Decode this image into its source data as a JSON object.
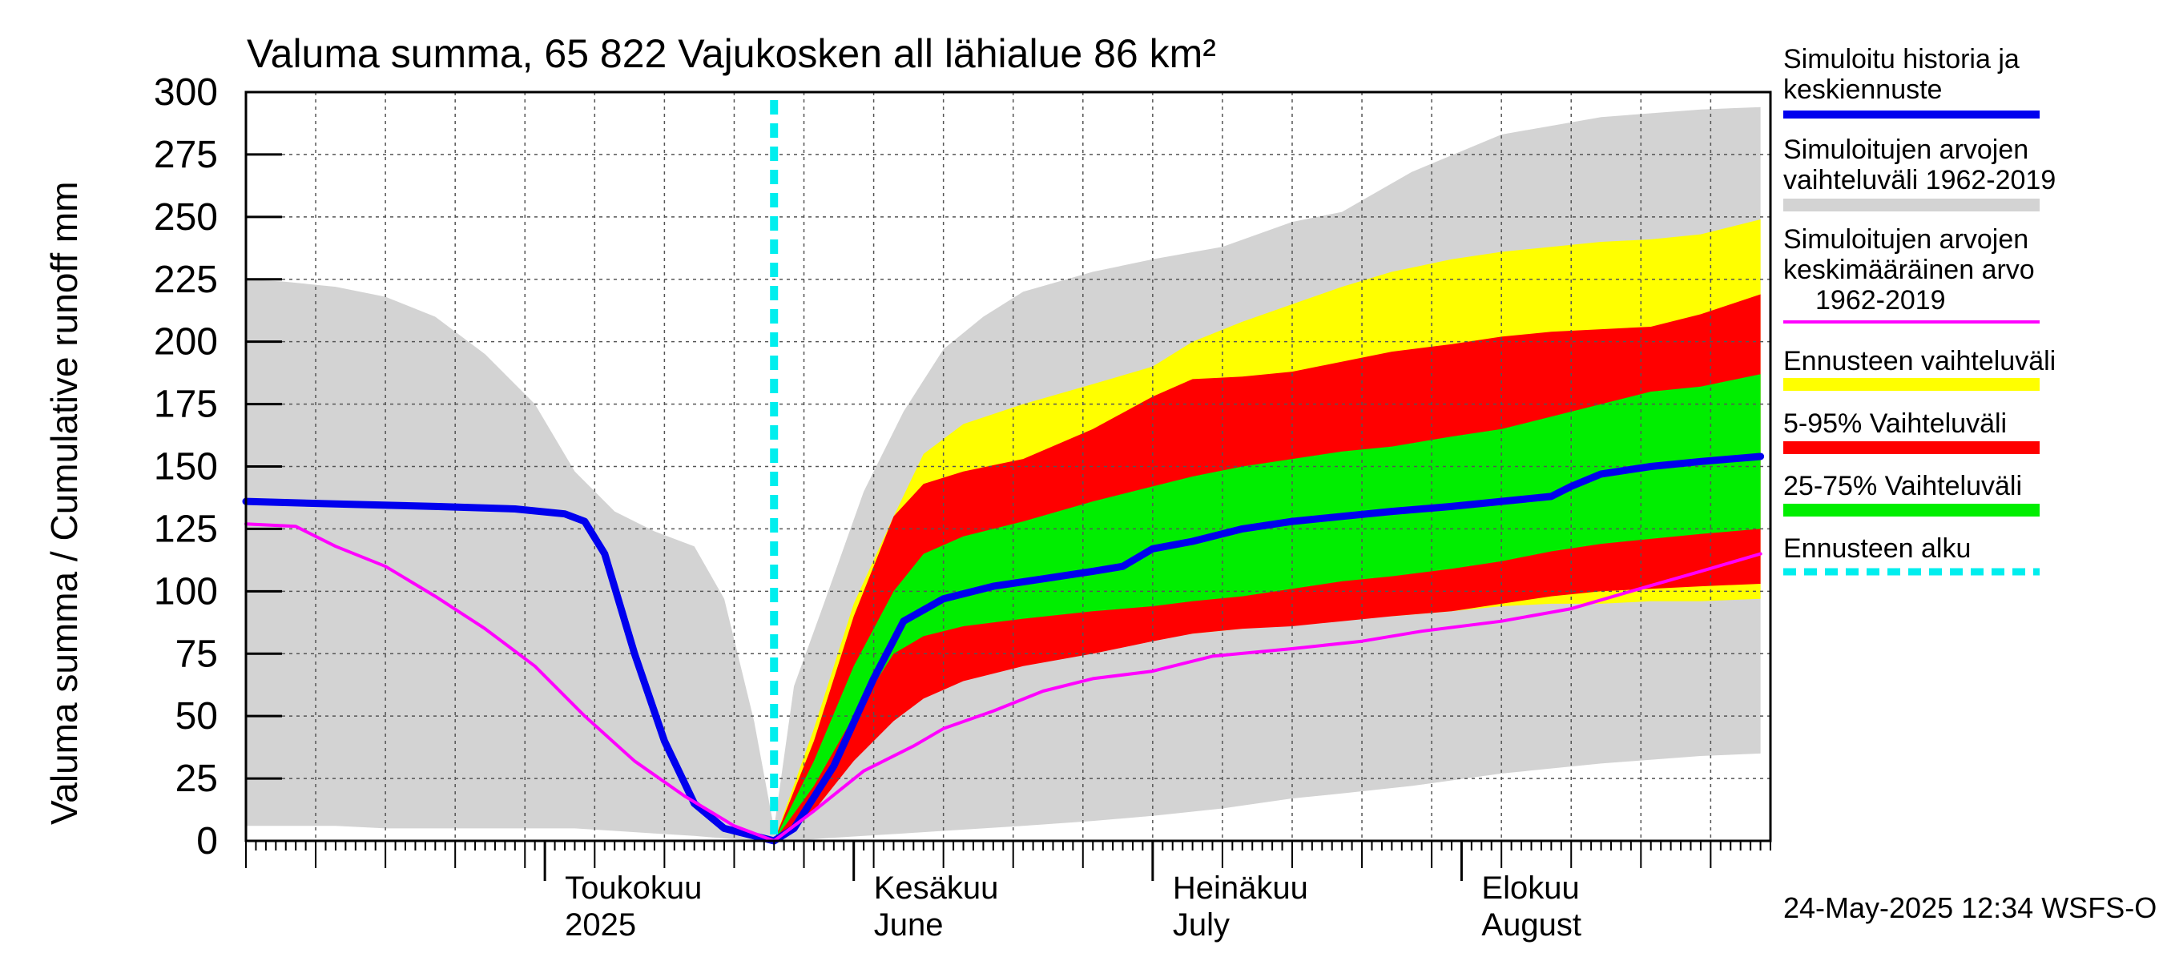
{
  "chart_data": {
    "type": "area",
    "title": "Valuma summa, 65 822 Vajukosken all lähialue 86 km²",
    "ylabel": "Valuma summa / Cumulative runoff    mm",
    "ylim": [
      0,
      300
    ],
    "yticks": [
      0,
      25,
      50,
      75,
      100,
      125,
      150,
      175,
      200,
      225,
      250,
      275,
      300
    ],
    "xlim": [
      "2025-04-01",
      "2025-08-31"
    ],
    "grid": true,
    "legend_position": "right",
    "forecast_start": "2025-05-24",
    "month_labels": [
      {
        "fi": "Toukokuu",
        "en": "2025",
        "date": "2025-05-01"
      },
      {
        "fi": "Kesäkuu",
        "en": "June",
        "date": "2025-06-01"
      },
      {
        "fi": "Heinäkuu",
        "en": "July",
        "date": "2025-07-01"
      },
      {
        "fi": "Elokuu",
        "en": "August",
        "date": "2025-08-01"
      }
    ],
    "timestamp": "24-May-2025 12:34 WSFS-O",
    "legend": [
      {
        "label": "Simuloitu historia ja keskiennuste",
        "lines": [
          "Simuloitu historia ja",
          "keskiennuste"
        ],
        "color": "#0000ee",
        "kind": "line"
      },
      {
        "label": "Simuloitujen arvojen vaihteluväli 1962-2019",
        "lines": [
          "Simuloitujen arvojen",
          "vaihteluväli 1962-2019"
        ],
        "color": "#d3d3d3",
        "kind": "band"
      },
      {
        "label": "Simuloitujen arvojen keskimääräinen arvo 1962-2019",
        "lines": [
          "Simuloitujen arvojen",
          "keskimääräinen arvo",
          "1962-2019"
        ],
        "color": "#ff00ff",
        "kind": "thin"
      },
      {
        "label": "Ennusteen vaihteluväli",
        "lines": [
          "Ennusteen vaihteluväli"
        ],
        "color": "#ffff00",
        "kind": "band"
      },
      {
        "label": "5-95% Vaihteluväli",
        "lines": [
          "5-95% Vaihteluväli"
        ],
        "color": "#ff0000",
        "kind": "band"
      },
      {
        "label": "25-75% Vaihteluväli",
        "lines": [
          "25-75% Vaihteluväli"
        ],
        "color": "#00ee00",
        "kind": "band"
      },
      {
        "label": "Ennusteen alku",
        "lines": [
          "Ennusteen alku"
        ],
        "color": "#00eeee",
        "kind": "dashed"
      }
    ],
    "bands": [
      {
        "name": "Simuloitujen arvojen vaihteluväli 1962-2019",
        "color": "#d3d3d3",
        "x": [
          "2025-04-01",
          "2025-04-05",
          "2025-04-10",
          "2025-04-15",
          "2025-04-20",
          "2025-04-25",
          "2025-04-30",
          "2025-05-04",
          "2025-05-08",
          "2025-05-12",
          "2025-05-16",
          "2025-05-19",
          "2025-05-22",
          "2025-05-24",
          "2025-05-26",
          "2025-05-29",
          "2025-06-02",
          "2025-06-06",
          "2025-06-10",
          "2025-06-14",
          "2025-06-18",
          "2025-06-25",
          "2025-07-01",
          "2025-07-08",
          "2025-07-15",
          "2025-07-20",
          "2025-07-27",
          "2025-08-05",
          "2025-08-15",
          "2025-08-25",
          "2025-08-31"
        ],
        "upper": [
          225,
          224,
          222,
          218,
          210,
          195,
          175,
          148,
          132,
          124,
          118,
          97,
          48,
          5,
          62,
          95,
          140,
          172,
          197,
          210,
          220,
          228,
          233,
          238,
          248,
          252,
          268,
          283,
          290,
          293,
          294
        ],
        "lower": [
          6,
          6,
          6,
          5,
          5,
          5,
          5,
          5,
          4,
          3,
          2,
          1,
          0,
          0,
          0,
          1,
          2,
          3,
          4,
          5,
          6,
          8,
          10,
          13,
          17,
          19,
          22,
          27,
          31,
          34,
          35
        ]
      },
      {
        "name": "Ennusteen vaihteluväli",
        "color": "#ffff00",
        "x": [
          "2025-05-24",
          "2025-05-28",
          "2025-06-01",
          "2025-06-05",
          "2025-06-08",
          "2025-06-12",
          "2025-06-18",
          "2025-06-25",
          "2025-07-01",
          "2025-07-05",
          "2025-07-10",
          "2025-07-15",
          "2025-07-20",
          "2025-07-25",
          "2025-07-31",
          "2025-08-05",
          "2025-08-10",
          "2025-08-15",
          "2025-08-20",
          "2025-08-25",
          "2025-08-31"
        ],
        "upper": [
          0,
          45,
          95,
          130,
          155,
          167,
          175,
          183,
          190,
          200,
          208,
          215,
          222,
          228,
          233,
          236,
          238,
          240,
          241,
          243,
          249
        ],
        "lower": [
          0,
          18,
          40,
          53,
          62,
          70,
          75,
          79,
          82,
          83,
          85,
          87,
          89,
          90,
          92,
          94,
          95,
          95,
          96,
          96,
          97
        ]
      },
      {
        "name": "5-95% Vaihteluväli",
        "color": "#ff0000",
        "x": [
          "2025-05-24",
          "2025-05-28",
          "2025-06-01",
          "2025-06-05",
          "2025-06-08",
          "2025-06-12",
          "2025-06-18",
          "2025-06-25",
          "2025-07-01",
          "2025-07-05",
          "2025-07-10",
          "2025-07-15",
          "2025-07-20",
          "2025-07-25",
          "2025-07-31",
          "2025-08-05",
          "2025-08-10",
          "2025-08-15",
          "2025-08-20",
          "2025-08-25",
          "2025-08-31"
        ],
        "upper": [
          0,
          40,
          90,
          130,
          143,
          148,
          153,
          165,
          178,
          185,
          186,
          188,
          192,
          196,
          199,
          202,
          204,
          205,
          206,
          211,
          219
        ],
        "lower": [
          0,
          12,
          32,
          48,
          57,
          64,
          70,
          75,
          80,
          83,
          85,
          86,
          88,
          90,
          92,
          95,
          98,
          100,
          101,
          102,
          103
        ]
      },
      {
        "name": "25-75% Vaihteluväli",
        "color": "#00ee00",
        "x": [
          "2025-05-24",
          "2025-05-28",
          "2025-06-01",
          "2025-06-05",
          "2025-06-08",
          "2025-06-12",
          "2025-06-18",
          "2025-06-25",
          "2025-07-01",
          "2025-07-05",
          "2025-07-10",
          "2025-07-15",
          "2025-07-20",
          "2025-07-25",
          "2025-07-31",
          "2025-08-05",
          "2025-08-10",
          "2025-08-15",
          "2025-08-20",
          "2025-08-25",
          "2025-08-31"
        ],
        "upper": [
          0,
          32,
          70,
          100,
          115,
          122,
          128,
          136,
          142,
          146,
          150,
          153,
          156,
          158,
          162,
          165,
          170,
          175,
          180,
          182,
          187
        ],
        "lower": [
          0,
          22,
          50,
          75,
          82,
          86,
          89,
          92,
          94,
          96,
          98,
          101,
          104,
          106,
          109,
          112,
          116,
          119,
          121,
          123,
          125
        ]
      }
    ],
    "series": [
      {
        "name": "Simuloitu historia ja keskiennuste",
        "color": "#0000ee",
        "x": [
          "2025-04-01",
          "2025-04-10",
          "2025-04-20",
          "2025-04-28",
          "2025-05-03",
          "2025-05-05",
          "2025-05-07",
          "2025-05-10",
          "2025-05-13",
          "2025-05-16",
          "2025-05-19",
          "2025-05-22",
          "2025-05-24",
          "2025-05-26",
          "2025-05-30",
          "2025-06-03",
          "2025-06-06",
          "2025-06-10",
          "2025-06-15",
          "2025-06-20",
          "2025-06-25",
          "2025-06-28",
          "2025-07-01",
          "2025-07-05",
          "2025-07-10",
          "2025-07-15",
          "2025-07-20",
          "2025-07-25",
          "2025-07-31",
          "2025-08-05",
          "2025-08-10",
          "2025-08-12",
          "2025-08-15",
          "2025-08-20",
          "2025-08-25",
          "2025-08-31"
        ],
        "values": [
          136,
          135,
          134,
          133,
          131,
          128,
          115,
          75,
          40,
          15,
          5,
          2,
          0,
          5,
          30,
          65,
          88,
          97,
          102,
          105,
          108,
          110,
          117,
          120,
          125,
          128,
          130,
          132,
          134,
          136,
          138,
          142,
          147,
          150,
          152,
          154
        ]
      },
      {
        "name": "Simuloitujen arvojen keskimääräinen arvo 1962-2019",
        "color": "#ff00ff",
        "x": [
          "2025-04-01",
          "2025-04-06",
          "2025-04-10",
          "2025-04-15",
          "2025-04-20",
          "2025-04-25",
          "2025-04-30",
          "2025-05-05",
          "2025-05-10",
          "2025-05-15",
          "2025-05-20",
          "2025-05-24",
          "2025-05-28",
          "2025-06-02",
          "2025-06-07",
          "2025-06-10",
          "2025-06-15",
          "2025-06-20",
          "2025-06-25",
          "2025-07-01",
          "2025-07-07",
          "2025-07-15",
          "2025-07-22",
          "2025-07-28",
          "2025-08-05",
          "2025-08-12",
          "2025-08-18",
          "2025-08-25",
          "2025-08-31"
        ],
        "values": [
          127,
          126,
          118,
          110,
          98,
          85,
          70,
          50,
          32,
          18,
          6,
          0,
          12,
          28,
          38,
          45,
          52,
          60,
          65,
          68,
          74,
          77,
          80,
          84,
          88,
          93,
          100,
          108,
          115
        ]
      }
    ]
  }
}
